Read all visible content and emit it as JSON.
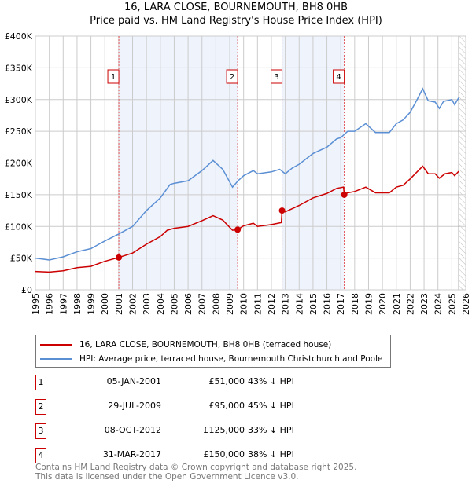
{
  "title": "16, LARA CLOSE, BOURNEMOUTH, BH8 0HB",
  "subtitle": "Price paid vs. HM Land Registry's House Price Index (HPI)",
  "chart_data": {
    "type": "line",
    "title": "16, LARA CLOSE, BOURNEMOUTH, BH8 0HB",
    "xlim": [
      1995,
      2026
    ],
    "ylim": [
      0,
      400000
    ],
    "x_ticks": [
      "1995",
      "1996",
      "1997",
      "1998",
      "1999",
      "2000",
      "2001",
      "2002",
      "2003",
      "2004",
      "2005",
      "2006",
      "2007",
      "2008",
      "2009",
      "2010",
      "2011",
      "2012",
      "2013",
      "2014",
      "2015",
      "2016",
      "2017",
      "2018",
      "2019",
      "2020",
      "2021",
      "2022",
      "2023",
      "2024",
      "2025",
      "2026"
    ],
    "y_ticks": [
      {
        "v": 0,
        "label": "£0"
      },
      {
        "v": 50000,
        "label": "£50K"
      },
      {
        "v": 100000,
        "label": "£100K"
      },
      {
        "v": 150000,
        "label": "£150K"
      },
      {
        "v": 200000,
        "label": "£200K"
      },
      {
        "v": 250000,
        "label": "£250K"
      },
      {
        "v": 300000,
        "label": "£300K"
      },
      {
        "v": 350000,
        "label": "£350K"
      },
      {
        "v": 400000,
        "label": "£400K"
      }
    ],
    "grid": true,
    "forecast_start": 2025.5,
    "series": [
      {
        "name": "16, LARA CLOSE, BOURNEMOUTH, BH8 0HB (terraced house)",
        "color": "#cc0000",
        "x": [
          1995,
          1996,
          1997,
          1998,
          1999,
          2000,
          2001,
          2002,
          2003,
          2004,
          2004.5,
          2005,
          2006,
          2007,
          2007.8,
          2008.5,
          2009.2,
          2009.57,
          2010,
          2010.7,
          2011,
          2012,
          2012.72,
          2012.77,
          2013,
          2014,
          2015,
          2016,
          2016.7,
          2017.2,
          2017.25,
          2017.5,
          2018,
          2018.8,
          2019.5,
          2020,
          2020.5,
          2021,
          2021.5,
          2022,
          2022.9,
          2023.3,
          2023.8,
          2024.1,
          2024.5,
          2025,
          2025.2,
          2025.5
        ],
        "y": [
          29000,
          28000,
          30000,
          35000,
          37000,
          45000,
          51000,
          58000,
          72000,
          84000,
          94000,
          97000,
          100000,
          109000,
          117000,
          110000,
          94000,
          95000,
          101000,
          105000,
          100000,
          103000,
          106000,
          125000,
          123000,
          133000,
          145000,
          152000,
          160000,
          162000,
          150000,
          153000,
          155000,
          162000,
          153000,
          153000,
          153000,
          162000,
          165000,
          175000,
          195000,
          183000,
          183000,
          176000,
          183000,
          185000,
          180000,
          187000
        ]
      },
      {
        "name": "HPI: Average price, terraced house, Bournemouth Christchurch and Poole",
        "color": "#5b8fd4",
        "x": [
          1995,
          1996,
          1997,
          1998,
          1999,
          2000,
          2001,
          2002,
          2003,
          2004,
          2004.7,
          2005,
          2006,
          2007,
          2007.8,
          2008.5,
          2009.2,
          2009.6,
          2010,
          2010.7,
          2011,
          2012,
          2012.6,
          2013,
          2013.5,
          2014,
          2015,
          2016,
          2016.7,
          2017,
          2017.5,
          2018,
          2018.8,
          2019.5,
          2020,
          2020.5,
          2021,
          2021.5,
          2022,
          2022.5,
          2022.9,
          2023.3,
          2023.8,
          2024.1,
          2024.4,
          2025,
          2025.2,
          2025.5
        ],
        "y": [
          50000,
          47000,
          52000,
          60000,
          65000,
          77000,
          88000,
          100000,
          125000,
          145000,
          166000,
          168000,
          172000,
          188000,
          204000,
          190000,
          162000,
          172000,
          180000,
          188000,
          183000,
          186000,
          190000,
          183000,
          192000,
          198000,
          215000,
          225000,
          238000,
          240000,
          250000,
          250000,
          262000,
          248000,
          248000,
          248000,
          262000,
          268000,
          280000,
          300000,
          317000,
          298000,
          296000,
          286000,
          297000,
          300000,
          292000,
          303000
        ]
      }
    ],
    "sales": [
      {
        "id": "1",
        "x": 2001.01,
        "y": 51000,
        "date": "05-JAN-2001",
        "price": "£51,000",
        "hpi": "43% ↓ HPI"
      },
      {
        "id": "2",
        "x": 2009.57,
        "y": 95000,
        "date": "29-JUL-2009",
        "price": "£95,000",
        "hpi": "45% ↓ HPI"
      },
      {
        "id": "3",
        "x": 2012.77,
        "y": 125000,
        "date": "08-OCT-2012",
        "price": "£125,000",
        "hpi": "33% ↓ HPI"
      },
      {
        "id": "4",
        "x": 2017.25,
        "y": 150000,
        "date": "31-MAR-2017",
        "price": "£150,000",
        "hpi": "38% ↓ HPI"
      }
    ],
    "legend": [
      "16, LARA CLOSE, BOURNEMOUTH, BH8 0HB (terraced house)",
      "HPI: Average price, terraced house, Bournemouth Christchurch and Poole"
    ],
    "legend_placement": "bottom"
  },
  "footer": [
    "Contains HM Land Registry data © Crown copyright and database right 2025.",
    "This data is licensed under the Open Government Licence v3.0."
  ]
}
